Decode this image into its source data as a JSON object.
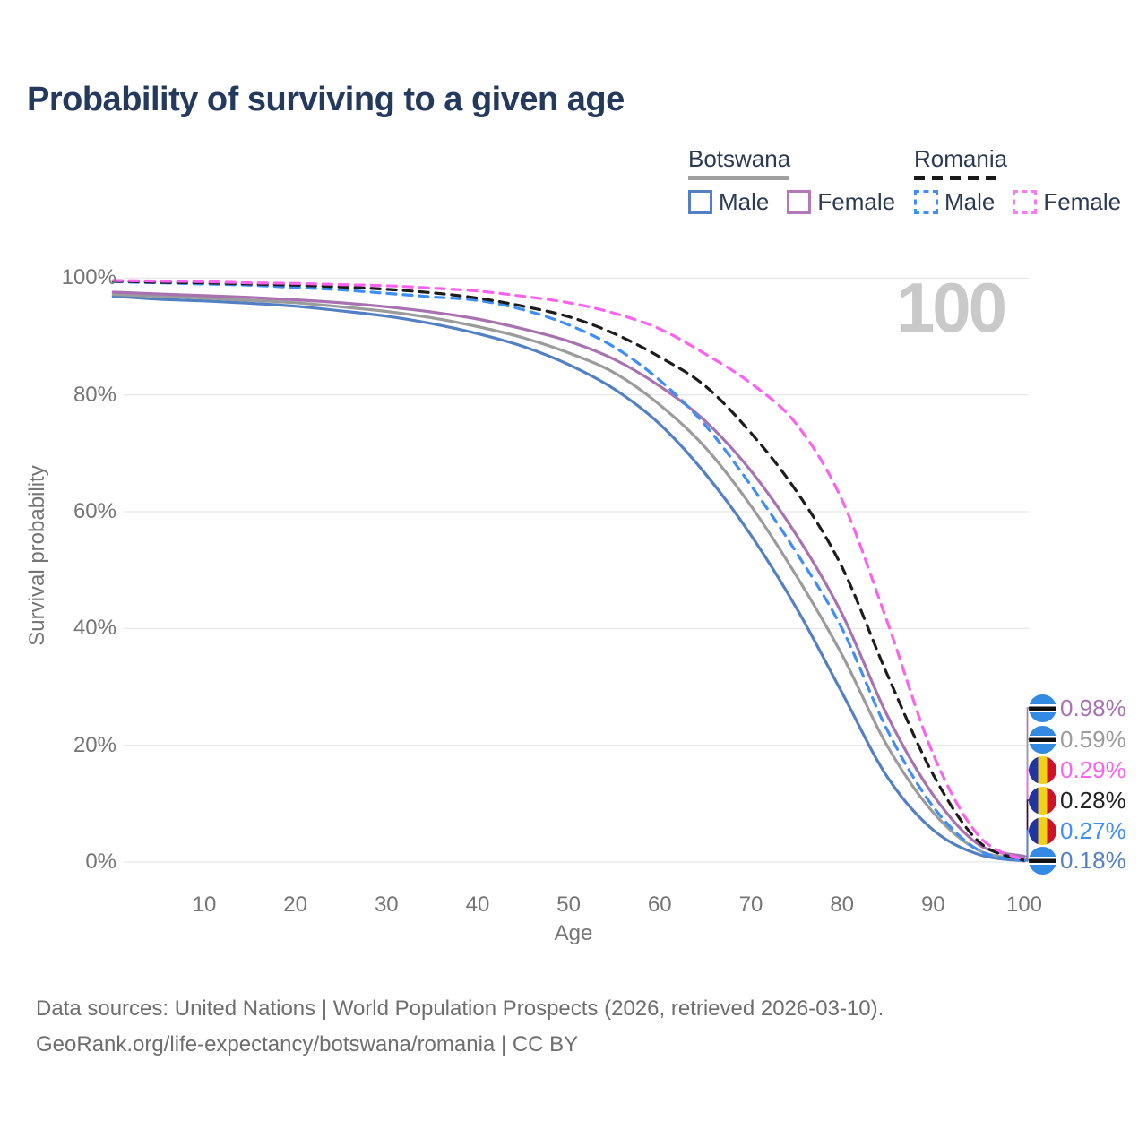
{
  "title": "Probability of surviving to a given age",
  "watermark_age": "100",
  "legend": {
    "groups": [
      {
        "country": "Botswana",
        "line_style": "solid",
        "line_color": "#a0a0a0",
        "items": [
          {
            "label": "Male",
            "color": "#5280c2",
            "dashed": false
          },
          {
            "label": "Female",
            "color": "#b278b8",
            "dashed": false
          }
        ]
      },
      {
        "country": "Romania",
        "line_style": "dashed",
        "line_color": "#1a1a1a",
        "items": [
          {
            "label": "Male",
            "color": "#3e8ef4",
            "dashed": true
          },
          {
            "label": "Female",
            "color": "#fb79f0",
            "dashed": true
          }
        ]
      }
    ]
  },
  "chart_data": {
    "type": "line",
    "title": "Probability of surviving to a given age",
    "xlabel": "Age",
    "ylabel": "Survival probability",
    "xlim": [
      0,
      100
    ],
    "ylim": [
      0,
      100
    ],
    "grid": "horizontal",
    "legend_position": "top-right",
    "x_ticks": [
      10,
      20,
      30,
      40,
      50,
      60,
      70,
      80,
      90,
      100
    ],
    "y_ticks": [
      {
        "value": 0,
        "label": "0%"
      },
      {
        "value": 20,
        "label": "20%"
      },
      {
        "value": 40,
        "label": "40%"
      },
      {
        "value": 60,
        "label": "60%"
      },
      {
        "value": 80,
        "label": "80%"
      },
      {
        "value": 100,
        "label": "100%"
      }
    ],
    "series": [
      {
        "name": "Botswana Male",
        "color": "#5280c2",
        "dashed": false,
        "end_label": "0.18%",
        "points": [
          [
            0,
            96.9
          ],
          [
            5,
            96.4
          ],
          [
            10,
            96.1
          ],
          [
            15,
            95.7
          ],
          [
            20,
            95.2
          ],
          [
            25,
            94.4
          ],
          [
            30,
            93.5
          ],
          [
            35,
            92.2
          ],
          [
            40,
            90.5
          ],
          [
            45,
            88.3
          ],
          [
            50,
            85.2
          ],
          [
            55,
            81.0
          ],
          [
            60,
            75.0
          ],
          [
            65,
            66.5
          ],
          [
            70,
            56.0
          ],
          [
            75,
            43.5
          ],
          [
            80,
            29.0
          ],
          [
            85,
            14.5
          ],
          [
            90,
            5.5
          ],
          [
            95,
            1.3
          ],
          [
            100,
            0.18
          ]
        ]
      },
      {
        "name": "Botswana",
        "color": "#9b9b9b",
        "dashed": false,
        "end_label": "0.59%",
        "points": [
          [
            0,
            97.2
          ],
          [
            5,
            96.9
          ],
          [
            10,
            96.6
          ],
          [
            15,
            96.2
          ],
          [
            20,
            95.8
          ],
          [
            25,
            95.1
          ],
          [
            30,
            94.3
          ],
          [
            35,
            93.2
          ],
          [
            40,
            91.7
          ],
          [
            45,
            89.8
          ],
          [
            50,
            87.2
          ],
          [
            55,
            83.8
          ],
          [
            60,
            78.3
          ],
          [
            65,
            71.0
          ],
          [
            70,
            61.0
          ],
          [
            75,
            49.0
          ],
          [
            80,
            35.5
          ],
          [
            85,
            19.8
          ],
          [
            90,
            8.5
          ],
          [
            95,
            2.0
          ],
          [
            100,
            0.59
          ]
        ]
      },
      {
        "name": "Botswana Female",
        "color": "#a872b0",
        "dashed": false,
        "end_label": "0.98%",
        "points": [
          [
            0,
            97.6
          ],
          [
            5,
            97.3
          ],
          [
            10,
            97.0
          ],
          [
            15,
            96.7
          ],
          [
            20,
            96.3
          ],
          [
            25,
            95.8
          ],
          [
            30,
            95.1
          ],
          [
            35,
            94.2
          ],
          [
            40,
            93.0
          ],
          [
            45,
            91.3
          ],
          [
            50,
            89.2
          ],
          [
            55,
            86.1
          ],
          [
            60,
            81.5
          ],
          [
            65,
            75.5
          ],
          [
            70,
            67.0
          ],
          [
            75,
            56.0
          ],
          [
            80,
            42.5
          ],
          [
            85,
            25.0
          ],
          [
            90,
            11.5
          ],
          [
            95,
            3.0
          ],
          [
            100,
            0.98
          ]
        ]
      },
      {
        "name": "Romania Male",
        "color": "#3e8ef4",
        "dashed": true,
        "end_label": "0.27%",
        "points": [
          [
            0,
            99.4
          ],
          [
            5,
            99.2
          ],
          [
            10,
            99.0
          ],
          [
            15,
            98.8
          ],
          [
            20,
            98.4
          ],
          [
            25,
            98.0
          ],
          [
            30,
            97.4
          ],
          [
            35,
            96.8
          ],
          [
            40,
            96.2
          ],
          [
            45,
            94.6
          ],
          [
            50,
            92.0
          ],
          [
            55,
            88.2
          ],
          [
            60,
            82.5
          ],
          [
            65,
            74.8
          ],
          [
            70,
            64.5
          ],
          [
            75,
            53.0
          ],
          [
            80,
            40.0
          ],
          [
            85,
            22.5
          ],
          [
            90,
            9.5
          ],
          [
            95,
            2.0
          ],
          [
            100,
            0.27
          ]
        ]
      },
      {
        "name": "Romania",
        "color": "#1c1c1c",
        "dashed": true,
        "end_label": "0.28%",
        "points": [
          [
            0,
            99.5
          ],
          [
            5,
            99.3
          ],
          [
            10,
            99.2
          ],
          [
            15,
            99.0
          ],
          [
            20,
            98.8
          ],
          [
            25,
            98.5
          ],
          [
            30,
            98.1
          ],
          [
            35,
            97.5
          ],
          [
            40,
            96.6
          ],
          [
            45,
            95.2
          ],
          [
            50,
            93.4
          ],
          [
            55,
            90.5
          ],
          [
            60,
            86.5
          ],
          [
            65,
            81.5
          ],
          [
            70,
            73.5
          ],
          [
            75,
            63.5
          ],
          [
            80,
            50.5
          ],
          [
            85,
            32.0
          ],
          [
            90,
            15.0
          ],
          [
            95,
            3.5
          ],
          [
            100,
            0.28
          ]
        ]
      },
      {
        "name": "Romania Female",
        "color": "#fb63ee",
        "dashed": true,
        "end_label": "0.29%",
        "points": [
          [
            0,
            99.6
          ],
          [
            5,
            99.5
          ],
          [
            10,
            99.4
          ],
          [
            15,
            99.2
          ],
          [
            20,
            99.1
          ],
          [
            25,
            98.9
          ],
          [
            30,
            98.7
          ],
          [
            35,
            98.3
          ],
          [
            40,
            97.8
          ],
          [
            45,
            96.9
          ],
          [
            50,
            95.8
          ],
          [
            55,
            94.0
          ],
          [
            60,
            91.3
          ],
          [
            65,
            87.0
          ],
          [
            70,
            82.0
          ],
          [
            75,
            75.0
          ],
          [
            80,
            62.0
          ],
          [
            85,
            41.0
          ],
          [
            90,
            18.5
          ],
          [
            95,
            4.5
          ],
          [
            100,
            0.29
          ]
        ]
      }
    ],
    "end_labels": [
      {
        "value": "0.98%",
        "series": "Botswana Female",
        "flag": "botswana",
        "color": "#a872b0"
      },
      {
        "value": "0.59%",
        "series": "Botswana",
        "flag": "botswana",
        "color": "#9b9b9b"
      },
      {
        "value": "0.29%",
        "series": "Romania Female",
        "flag": "romania",
        "color": "#fb63ee"
      },
      {
        "value": "0.28%",
        "series": "Romania",
        "flag": "romania",
        "color": "#222222"
      },
      {
        "value": "0.27%",
        "series": "Romania Male",
        "flag": "romania",
        "color": "#3e8ef4"
      },
      {
        "value": "0.18%",
        "series": "Botswana Male",
        "flag": "botswana",
        "color": "#5280c2"
      }
    ]
  },
  "footer": {
    "line1": "Data sources: United Nations | World Population Prospects (2026, retrieved 2026-03-10).",
    "line2": "GeoRank.org/life-expectancy/botswana/romania | CC BY"
  }
}
